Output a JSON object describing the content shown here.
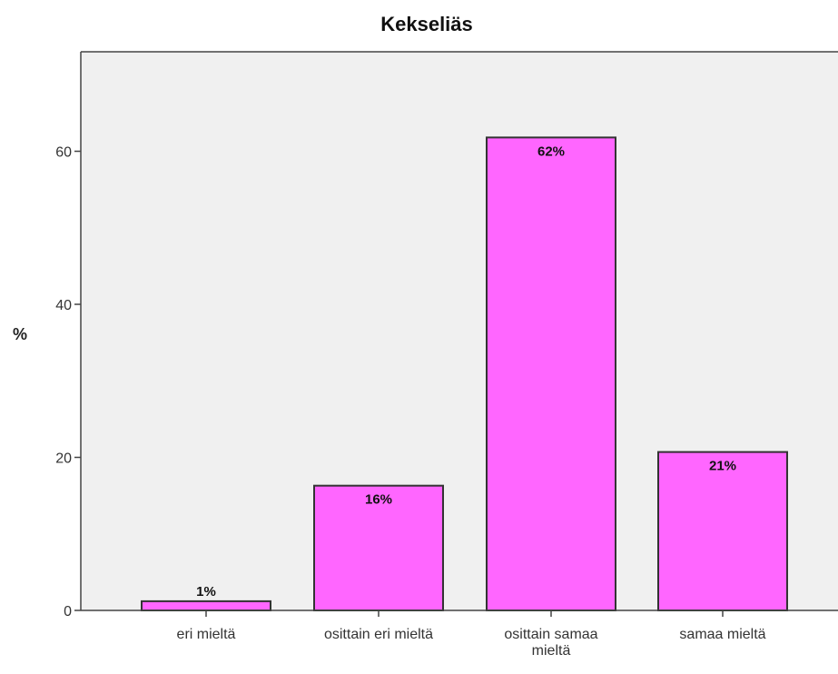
{
  "chart_data": {
    "type": "bar",
    "title": "Kekseliäs",
    "xlabel": "",
    "ylabel": "%",
    "categories": [
      "eri mieltä",
      "osittain eri mieltä",
      "osittain samaa mieltä",
      "samaa mieltä"
    ],
    "category_label_lines": [
      [
        "eri mieltä"
      ],
      [
        "osittain eri mieltä"
      ],
      [
        "osittain samaa",
        "mieltä"
      ],
      [
        "samaa mieltä"
      ]
    ],
    "values": [
      1.2,
      16.3,
      61.8,
      20.7
    ],
    "data_labels": [
      "1%",
      "16%",
      "62%",
      "21%"
    ],
    "yticks": [
      0,
      20,
      40,
      60
    ],
    "ylim": [
      0,
      73
    ],
    "grid": false,
    "colors": {
      "bar_fill": "#ff66ff",
      "bar_stroke": "#333333",
      "plot_background": "#f0f0f0",
      "plot_border": "#444444"
    }
  }
}
